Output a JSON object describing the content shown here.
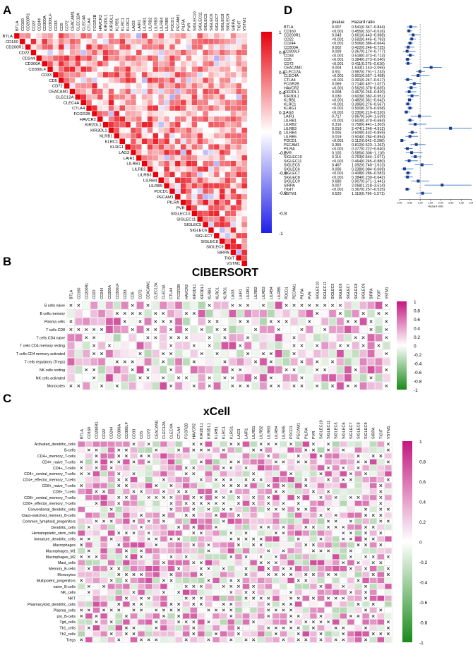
{
  "panels": {
    "a": "A",
    "b": "B",
    "c": "C",
    "d": "D"
  },
  "chart_data": [
    {
      "type": "heatmap",
      "panel": "A",
      "title": "",
      "description": "Lower-triangular correlation matrix of immune checkpoint genes (upper triangle shown)",
      "genes": [
        "BTLA",
        "CD160",
        "CD200R1",
        "CD22",
        "CD244",
        "CD300A",
        "CD300LF",
        "CD33",
        "CD5",
        "CD72",
        "CEACAM1",
        "CLEC12A",
        "CLEC4A",
        "CTLA4",
        "FCGR2B",
        "HAVCR2",
        "KIR2DL1",
        "KIR3DL1",
        "KLRB1",
        "KLRC1",
        "KLRG1",
        "LAG3",
        "LAIR1",
        "LILRB1",
        "LILRB2",
        "LILRB3",
        "LILRB4",
        "LILRB5",
        "PDCD1",
        "PECAM1",
        "PILRA",
        "PVR",
        "SIGLEC10",
        "SIGLEC11",
        "SIGLEC5",
        "SIGLEC6",
        "SIGLEC7",
        "SIGLEC8",
        "SIGLEC9",
        "SIRPA",
        "TIGIT",
        "VSTM1"
      ],
      "colorbar_ticks": [
        "1",
        "0.8",
        "0.6",
        "0.4",
        "0.2",
        "0",
        "-0.2",
        "-0.4",
        "-0.6",
        "-0.8",
        "-1"
      ],
      "colors": {
        "pos": "#e8000b",
        "neg": "#1f1fe8",
        "mid": "#ffffff"
      }
    },
    {
      "type": "heatmap",
      "panel": "B",
      "title": "CIBERSORT",
      "rows": [
        "B cells naive",
        "B cells memory",
        "Plasma cells",
        "T cells CD8",
        "T cells CD4 naive",
        "T cells CD4 memory resting",
        "T cells CD4 memory activated",
        "T cells regulatory (Tregs)",
        "NK cells resting",
        "NK cells activated",
        "Monocytes"
      ],
      "columns": [
        "BTLA",
        "CD160",
        "CD200R1",
        "CD22",
        "CD244",
        "CD300A",
        "CD300LF",
        "CD33",
        "CD5",
        "CD72",
        "CEACAM1",
        "CLEC12A",
        "CLEC4A",
        "CTLA4",
        "FCGR2B",
        "HAVCR2",
        "KIR2DL1",
        "KIR3DL1",
        "KLRB1",
        "KLRC1",
        "KLRG1",
        "LAG3",
        "LAIR1",
        "LILRB1",
        "LILRB2",
        "LILRB3",
        "LILRB4",
        "LILRB5",
        "PDCD1",
        "PECAM1",
        "PILRA",
        "PVR",
        "SIGLEC10",
        "SIGLEC11",
        "SIGLEC5",
        "SIGLEC6",
        "SIGLEC7",
        "SIGLEC8",
        "SIGLEC9",
        "SIRPA",
        "TIGIT",
        "VSTM1"
      ],
      "colorbar_ticks": [
        "1",
        "0.8",
        "0.6",
        "0.4",
        "0.2",
        "0",
        "-0.2",
        "-0.4",
        "-0.6",
        "-0.8",
        "-1"
      ],
      "colors": {
        "pos": "#c2187f",
        "neg": "#1a8a1a",
        "mid": "#ffffff"
      }
    },
    {
      "type": "heatmap",
      "panel": "C",
      "title": "xCell",
      "rows": [
        "Activated_dendritic_cells",
        "B-cells",
        "CD4+_memory_T-cells",
        "CD4+_naive_T-cells",
        "CD4+_T-cells",
        "CD4+_central_memory_T-cells",
        "CD4+_effector_memory_T-cells",
        "CD8+_naive_T-cells",
        "CD8+_T-cells",
        "CD8+_central_memory_T-cells",
        "CD8+_effector_memory_T-cells",
        "Conventional_dendritic_cells",
        "Class-switched_memory_B-cells",
        "Common_lymphoid_progenitors",
        "Dendritic_cells",
        "Hematopoietic_stem_cells",
        "Immature_dendritic_cells",
        "Macrophages",
        "Macrophages_M1",
        "Macrophages_M2",
        "Mast_cells",
        "Memory_B-cells",
        "Monocytes",
        "Multipotent_progenitors",
        "naive_B-cells",
        "NK_cells",
        "NKT",
        "Plasmacytoid_dendritic_cells",
        "Plasma_cells",
        "pro_B-cells",
        "Tgd_cells",
        "Th1_cells",
        "Th2_cells",
        "Tregs"
      ],
      "columns": [
        "BTLA",
        "CD160",
        "CD200R1",
        "CD22",
        "CD244",
        "CD300A",
        "CD300LF",
        "CD33",
        "CD5",
        "CD72",
        "CEACAM1",
        "CLEC12A",
        "CLEC4A",
        "CTLA4",
        "FCGR2B",
        "HAVCR2",
        "KIR2DL1",
        "KIR3DL1",
        "KLRB1",
        "KLRC1",
        "KLRG1",
        "LAG3",
        "LAIR1",
        "LILRB1",
        "LILRB2",
        "LILRB3",
        "LILRB4",
        "LILRB5",
        "PDCD1",
        "PECAM1",
        "PILRA",
        "PVR",
        "SIGLEC10",
        "SIGLEC11",
        "SIGLEC5",
        "SIGLEC6",
        "SIGLEC7",
        "SIGLEC8",
        "SIGLEC9",
        "SIRPA",
        "TIGIT",
        "VSTM1"
      ],
      "colorbar_ticks": [
        "1",
        "0.8",
        "0.6",
        "0.4",
        "0.2",
        "0",
        "-0.2",
        "-0.4",
        "-0.6",
        "-0.8",
        "-1"
      ],
      "colors": {
        "pos": "#c2187f",
        "neg": "#1a8a1a",
        "mid": "#ffffff"
      }
    },
    {
      "type": "forest",
      "panel": "D",
      "col_headers": [
        "pvalue",
        "Hazard ratio"
      ],
      "xlabel": "Hazard ratio",
      "xticks": [
        "0.00",
        "0.50",
        "1.00",
        "1.50",
        "2.00",
        "2.50",
        "3.00",
        "3.50"
      ],
      "xlim": [
        0,
        3.5
      ],
      "rows": [
        {
          "gene": "BTLA",
          "p": "0.007",
          "hr_text": "0.541(0.347−0.844)",
          "hr": 0.541,
          "lo": 0.347,
          "hi": 0.844
        },
        {
          "gene": "CD160",
          "p": "<0.001",
          "hr_text": "0.455(0.337−0.616)",
          "hr": 0.455,
          "lo": 0.337,
          "hi": 0.616
        },
        {
          "gene": "CD200R1",
          "p": "0.043",
          "hr_text": "0.661(0.443−0.988)",
          "hr": 0.661,
          "lo": 0.443,
          "hi": 0.988
        },
        {
          "gene": "CD22",
          "p": "<0.001",
          "hr_text": "0.592(0.445−0.793)",
          "hr": 0.592,
          "lo": 0.445,
          "hi": 0.793
        },
        {
          "gene": "CD244",
          "p": "<0.001",
          "hr_text": "0.506(0.386−0.664)",
          "hr": 0.506,
          "lo": 0.386,
          "hi": 0.664
        },
        {
          "gene": "CD300A",
          "p": "0.002",
          "hr_text": "0.422(0.246−0.725)",
          "hr": 0.422,
          "lo": 0.246,
          "hi": 0.725
        },
        {
          "gene": "CD300LF",
          "p": "0.009",
          "hr_text": "0.367(0.174−0.777)",
          "hr": 0.367,
          "lo": 0.174,
          "hi": 0.777
        },
        {
          "gene": "CD33",
          "p": "<0.001",
          "hr_text": "0.518(0.373−0.713)",
          "hr": 0.518,
          "lo": 0.373,
          "hi": 0.713
        },
        {
          "gene": "CD5",
          "p": "<0.001",
          "hr_text": "0.384(0.273−0.540)",
          "hr": 0.384,
          "lo": 0.273,
          "hi": 0.54
        },
        {
          "gene": "CD72",
          "p": "<0.001",
          "hr_text": "0.411(0.275−0.616)",
          "hr": 0.411,
          "lo": 0.275,
          "hi": 0.616
        },
        {
          "gene": "CEACAM1",
          "p": "0.004",
          "hr_text": "1.533(1.143−2.055)",
          "hr": 1.533,
          "lo": 1.143,
          "hi": 2.055
        },
        {
          "gene": "CLEC12A",
          "p": "0.911",
          "hr_text": "0.987(0.791−1.233)",
          "hr": 0.987,
          "lo": 0.791,
          "hi": 1.233
        },
        {
          "gene": "CLEC4A",
          "p": "<0.001",
          "hr_text": "0.901(0.557−1.458)",
          "hr": 0.901,
          "lo": 0.557,
          "hi": 1.458
        },
        {
          "gene": "CTLA4",
          "p": "<0.001",
          "hr_text": "0.391(0.247−0.617)",
          "hr": 0.391,
          "lo": 0.247,
          "hi": 0.617
        },
        {
          "gene": "FCGR2B",
          "p": "0.069",
          "hr_text": "0.714(0.497−1.027)",
          "hr": 0.714,
          "lo": 0.497,
          "hi": 1.027
        },
        {
          "gene": "HAVCR2",
          "p": "<0.001",
          "hr_text": "0.562(0.378−0.835)",
          "hr": 0.562,
          "lo": 0.378,
          "hi": 0.835
        },
        {
          "gene": "KIR2DL1",
          "p": "0.008",
          "hr_text": "0.467(0.266−0.820)",
          "hr": 0.467,
          "lo": 0.266,
          "hi": 0.82
        },
        {
          "gene": "KIR3DL1",
          "p": "0.030",
          "hr_text": "0.603(0.382−0.951)",
          "hr": 0.603,
          "lo": 0.382,
          "hi": 0.951
        },
        {
          "gene": "KLRB1",
          "p": "<0.001",
          "hr_text": "0.482(0.361−0.642)",
          "hr": 0.482,
          "lo": 0.361,
          "hi": 0.642
        },
        {
          "gene": "KLRC1",
          "p": "<0.001",
          "hr_text": "0.396(0.276−0.567)",
          "hr": 0.396,
          "lo": 0.276,
          "hi": 0.567
        },
        {
          "gene": "KLRG1",
          "p": "<0.001",
          "hr_text": "0.500(0.379−0.658)",
          "hr": 0.5,
          "lo": 0.379,
          "hi": 0.658
        },
        {
          "gene": "LAG3",
          "p": "<0.001",
          "hr_text": "0.330(0.210−0.520)",
          "hr": 0.33,
          "lo": 0.21,
          "hi": 0.52
        },
        {
          "gene": "LAIR1",
          "p": "0.717",
          "hr_text": "0.967(0.534−1.539)",
          "hr": 0.967,
          "lo": 0.534,
          "hi": 1.539
        },
        {
          "gene": "LILRB1",
          "p": "<0.001",
          "hr_text": "0.503(0.370−0.684)",
          "hr": 0.503,
          "lo": 0.37,
          "hi": 0.684
        },
        {
          "gene": "LILRB2",
          "p": "0.316",
          "hr_text": "0.758(0.441−1.303)",
          "hr": 0.758,
          "lo": 0.441,
          "hi": 1.303
        },
        {
          "gene": "LILRB3",
          "p": "0.010",
          "hr_text": "2.474(1.246−4.912)",
          "hr": 2.474,
          "lo": 1.246,
          "hi": 4.912
        },
        {
          "gene": "LILRB4",
          "p": "0.005",
          "hr_text": "0.609(0.432−0.859)",
          "hr": 0.609,
          "lo": 0.432,
          "hi": 0.859
        },
        {
          "gene": "LILRB5",
          "p": "0.019",
          "hr_text": "0.504(0.284−0.894)",
          "hr": 0.504,
          "lo": 0.284,
          "hi": 0.894
        },
        {
          "gene": "PDCD1",
          "p": "<0.001",
          "hr_text": "0.112(0.042−0.296)",
          "hr": 0.112,
          "lo": 0.042,
          "hi": 0.296
        },
        {
          "gene": "PECAM1",
          "p": "0.355",
          "hr_text": "0.812(0.523−1.262)",
          "hr": 0.812,
          "lo": 0.523,
          "hi": 1.262
        },
        {
          "gene": "PILRA",
          "p": "<0.001",
          "hr_text": "0.377(0.222−0.640)",
          "hr": 0.377,
          "lo": 0.222,
          "hi": 0.64
        },
        {
          "gene": "PVR",
          "p": "0.105",
          "hr_text": "0.585(0.306−1.118)",
          "hr": 0.585,
          "lo": 0.306,
          "hi": 1.118
        },
        {
          "gene": "SIGLEC10",
          "p": "0.116",
          "hr_text": "0.763(0.544−1.071)",
          "hr": 0.763,
          "lo": 0.544,
          "hi": 1.071
        },
        {
          "gene": "SIGLEC11",
          "p": "<0.001",
          "hr_text": "0.464(0.245−0.880)",
          "hr": 0.464,
          "lo": 0.245,
          "hi": 0.88
        },
        {
          "gene": "SIGLEC5",
          "p": "0.467",
          "hr_text": "1.092(0.740−1.613)",
          "hr": 1.092,
          "lo": 0.74,
          "hi": 1.613
        },
        {
          "gene": "SIGLEC6",
          "p": "0.006",
          "hr_text": "0.238(0.084−0.669)",
          "hr": 0.238,
          "lo": 0.084,
          "hi": 0.669
        },
        {
          "gene": "SIGLEC7",
          "p": "<0.001",
          "hr_text": "0.408(0.286−0.583)",
          "hr": 0.408,
          "lo": 0.286,
          "hi": 0.583
        },
        {
          "gene": "SIGLEC8",
          "p": "<0.001",
          "hr_text": "0.384(0.230−0.642)",
          "hr": 0.384,
          "lo": 0.23,
          "hi": 0.642
        },
        {
          "gene": "SIGLEC9",
          "p": "0.680",
          "hr_text": "0.907(0.571−1.441)",
          "hr": 0.907,
          "lo": 0.571,
          "hi": 1.441
        },
        {
          "gene": "SIRPA",
          "p": "0.007",
          "hr_text": "2.068(1.218−3.514)",
          "hr": 2.068,
          "lo": 1.218,
          "hi": 3.514
        },
        {
          "gene": "TIGIT",
          "p": "<0.001",
          "hr_text": "0.367(0.257−0.525)",
          "hr": 0.367,
          "lo": 0.257,
          "hi": 0.525
        },
        {
          "gene": "VSTM1",
          "p": "0.520",
          "hr_text": "1.118(0.796−1.571)",
          "hr": 1.118,
          "lo": 0.796,
          "hi": 1.571
        }
      ]
    }
  ]
}
